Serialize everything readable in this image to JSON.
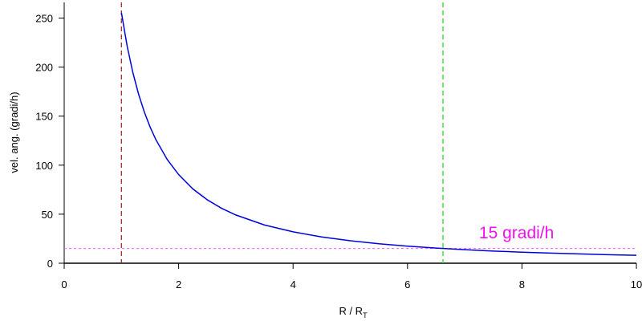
{
  "chart_data": {
    "type": "line",
    "xlabel": "R / R",
    "xlabel_subscript": "T",
    "ylabel": "vel. ang. (gradi/h)",
    "x": [
      1,
      1.1,
      1.2,
      1.3,
      1.4,
      1.5,
      1.6,
      1.8,
      2,
      2.25,
      2.5,
      2.75,
      3,
      3.5,
      4,
      4.5,
      5,
      5.5,
      6,
      6.5,
      7,
      7.5,
      8,
      8.5,
      9,
      9.5,
      10
    ],
    "series": [
      {
        "name": "vel. ang.",
        "color": "#0000dd",
        "values": [
          255.6,
          221.5,
          194.4,
          172.4,
          154.3,
          139.1,
          126.3,
          105.8,
          90.4,
          75.7,
          64.7,
          56.0,
          49.2,
          39.0,
          32.0,
          26.8,
          22.9,
          19.8,
          17.4,
          15.4,
          13.8,
          12.4,
          11.3,
          10.3,
          9.5,
          8.7,
          8.1
        ]
      }
    ],
    "xlim": [
      0,
      10
    ],
    "xticks": [
      0,
      2,
      4,
      6,
      8,
      10
    ],
    "ylim": [
      0,
      266
    ],
    "yticks": [
      0,
      50,
      100,
      150,
      200,
      250
    ],
    "vlines": [
      {
        "x": 1,
        "color": "#a52a2a"
      },
      {
        "x": 6.62,
        "color": "#22dd22"
      }
    ],
    "hlines": [
      {
        "y": 15,
        "color": "#ff55ff"
      }
    ],
    "annotations": [
      {
        "text": "15 gradi/h",
        "x": 7.25,
        "y": 31,
        "color": "#ee11ee"
      }
    ]
  }
}
